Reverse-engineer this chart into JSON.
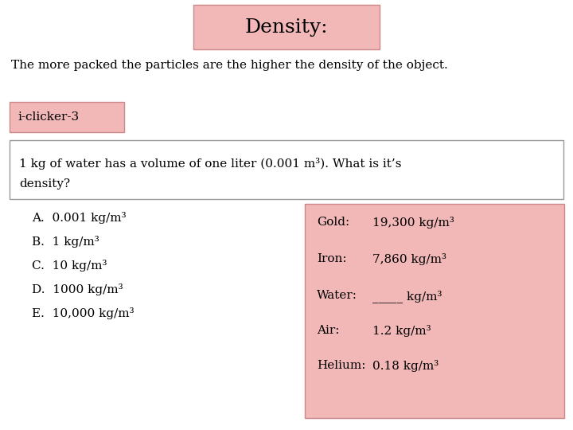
{
  "title": "Density:",
  "subtitle": "The more packed the particles are the higher the density of the object.",
  "iclicker_label": "i-clicker-3",
  "question_line1": "1 kg of water has a volume of one liter (0.001 m³). What is it’s",
  "question_line2": "density?",
  "options": [
    "A.  0.001 kg/m³",
    "B.  1 kg/m³",
    "C.  10 kg/m³",
    "D.  1000 kg/m³",
    "E.  10,000 kg/m³"
  ],
  "table_labels": [
    "Gold:",
    "Iron:",
    "Water:",
    "Air:",
    "Helium:"
  ],
  "table_values": [
    "19,300 kg/m³",
    "7,860 kg/m³",
    "_____ kg/m³",
    "1.2 kg/m³",
    "0.18 kg/m³"
  ],
  "bg_color": "#ffffff",
  "title_box_color": "#f2b8b8",
  "iclicker_box_color": "#f2b8b8",
  "question_box_color": "#ffffff",
  "table_box_color": "#f2b8b8",
  "title_box_edge": "#cc8888",
  "iclicker_box_edge": "#cc8888",
  "question_box_edge": "#999999",
  "table_box_edge": "#cc8888",
  "title_fontsize": 18,
  "body_fontsize": 11,
  "font_color": "#000000",
  "font_family": "serif"
}
